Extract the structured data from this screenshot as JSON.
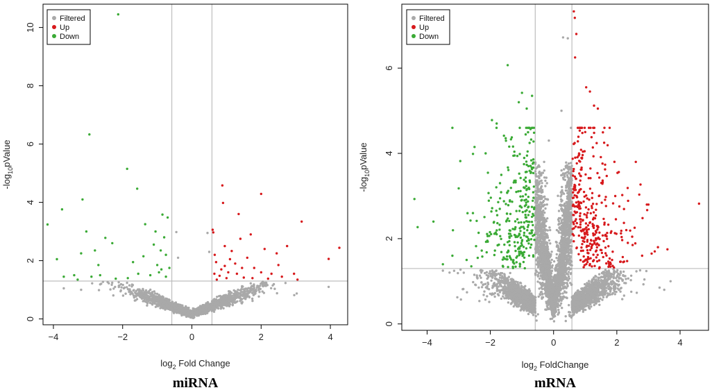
{
  "chart_data": [
    {
      "type": "scatter",
      "panel_label": "miRNA",
      "xlabel": {
        "prefix": "log",
        "sub": "2",
        "suffix": " Fold Change"
      },
      "ylabel": {
        "prefix": "-log",
        "sub": "10",
        "suffix": "pValue"
      },
      "xlim": [
        -4.3,
        4.5
      ],
      "ylim": [
        -0.2,
        10.8
      ],
      "xticks": [
        -4,
        -2,
        0,
        2,
        4
      ],
      "yticks": [
        0,
        2,
        4,
        6,
        8,
        10
      ],
      "vlines": [
        -0.58,
        0.58
      ],
      "hline": 1.3,
      "legend": {
        "placement": "top-left",
        "entries": [
          "Filtered",
          "Up",
          "Down"
        ]
      },
      "colors": {
        "Filtered": "#a9a9a9",
        "Up": "#d7191c",
        "Down": "#3aaa35"
      },
      "series": [
        {
          "name": "Up",
          "points": [
            [
              0.88,
              4.58
            ],
            [
              2.0,
              4.29
            ],
            [
              3.17,
              3.34
            ],
            [
              4.26,
              2.44
            ],
            [
              3.95,
              2.06
            ],
            [
              1.35,
              3.6
            ],
            [
              0.6,
              3.06
            ],
            [
              0.9,
              3.98
            ],
            [
              0.62,
              2.97
            ],
            [
              1.7,
              2.9
            ],
            [
              0.95,
              2.5
            ],
            [
              1.15,
              2.33
            ],
            [
              1.4,
              2.75
            ],
            [
              2.1,
              2.4
            ],
            [
              2.45,
              2.25
            ],
            [
              2.75,
              2.5
            ],
            [
              0.7,
              1.95
            ],
            [
              1.1,
              2.05
            ],
            [
              1.6,
              2.1
            ],
            [
              0.85,
              1.7
            ],
            [
              1.3,
              1.55
            ],
            [
              1.8,
              1.75
            ],
            [
              2.3,
              1.55
            ],
            [
              2.95,
              1.55
            ],
            [
              3.05,
              1.35
            ],
            [
              0.65,
              1.55
            ],
            [
              0.8,
              1.48
            ],
            [
              1.0,
              1.4
            ],
            [
              1.5,
              1.42
            ],
            [
              2.2,
              1.38
            ],
            [
              2.6,
              1.45
            ],
            [
              0.95,
              1.82
            ],
            [
              1.25,
              1.9
            ],
            [
              1.75,
              1.4
            ],
            [
              2.0,
              1.6
            ],
            [
              0.72,
              1.35
            ],
            [
              1.45,
              1.75
            ],
            [
              2.5,
              1.85
            ],
            [
              0.66,
              2.2
            ],
            [
              1.05,
              1.6
            ]
          ]
        },
        {
          "name": "Down",
          "points": [
            [
              -2.13,
              10.45
            ],
            [
              -2.96,
              6.33
            ],
            [
              -1.87,
              5.15
            ],
            [
              -1.58,
              4.47
            ],
            [
              -3.16,
              4.1
            ],
            [
              -3.75,
              3.76
            ],
            [
              -4.17,
              3.24
            ],
            [
              -3.05,
              3.0
            ],
            [
              -0.85,
              3.58
            ],
            [
              -0.7,
              3.48
            ],
            [
              -1.35,
              3.25
            ],
            [
              -1.05,
              3.0
            ],
            [
              -2.5,
              2.78
            ],
            [
              -2.3,
              2.6
            ],
            [
              -0.8,
              2.8
            ],
            [
              -1.1,
              2.55
            ],
            [
              -3.9,
              2.05
            ],
            [
              -3.2,
              2.25
            ],
            [
              -2.8,
              2.35
            ],
            [
              -0.9,
              2.35
            ],
            [
              -1.4,
              2.15
            ],
            [
              -0.75,
              2.2
            ],
            [
              -1.7,
              1.95
            ],
            [
              -2.7,
              1.85
            ],
            [
              -1.0,
              1.85
            ],
            [
              -0.65,
              1.75
            ],
            [
              -3.7,
              1.45
            ],
            [
              -3.4,
              1.5
            ],
            [
              -2.9,
              1.45
            ],
            [
              -2.65,
              1.5
            ],
            [
              -1.85,
              1.4
            ],
            [
              -1.2,
              1.5
            ],
            [
              -0.95,
              1.6
            ],
            [
              -0.75,
              1.45
            ],
            [
              -3.3,
              1.35
            ],
            [
              -2.2,
              1.38
            ],
            [
              -1.55,
              1.55
            ],
            [
              -0.88,
              1.7
            ]
          ]
        },
        {
          "name": "Filtered",
          "generator": "volcano-cloud",
          "count": 1800,
          "seed": 11,
          "points": [
            [
              -0.45,
              2.98
            ],
            [
              0.45,
              2.95
            ],
            [
              0.5,
              2.3
            ],
            [
              -0.4,
              2.1
            ],
            [
              3.95,
              1.1
            ],
            [
              -3.7,
              1.05
            ],
            [
              -3.2,
              1.0
            ]
          ]
        }
      ]
    },
    {
      "type": "scatter",
      "panel_label": "mRNA",
      "xlabel": {
        "prefix": "log",
        "sub": "2",
        "suffix": " FoldChange"
      },
      "ylabel": {
        "prefix": "-log",
        "sub": "10",
        "suffix": "pValue"
      },
      "xlim": [
        -4.8,
        4.9
      ],
      "ylim": [
        -0.15,
        7.5
      ],
      "xticks": [
        -4,
        -2,
        0,
        2,
        4
      ],
      "yticks": [
        0,
        2,
        4,
        6
      ],
      "vlines": [
        -0.58,
        0.58
      ],
      "hline": 1.3,
      "legend": {
        "placement": "top-left",
        "entries": [
          "Filtered",
          "Up",
          "Down"
        ]
      },
      "colors": {
        "Filtered": "#a9a9a9",
        "Up": "#d7191c",
        "Down": "#3aaa35"
      },
      "series": [
        {
          "name": "Up",
          "points": [
            [
              0.64,
              7.33
            ],
            [
              0.67,
              7.18
            ],
            [
              0.72,
              6.8
            ],
            [
              0.68,
              6.25
            ],
            [
              1.03,
              5.55
            ],
            [
              1.15,
              5.45
            ],
            [
              1.28,
              5.12
            ],
            [
              1.4,
              5.05
            ],
            [
              1.0,
              4.5
            ],
            [
              1.2,
              4.38
            ],
            [
              0.98,
              4.05
            ],
            [
              1.6,
              4.25
            ],
            [
              2.6,
              3.8
            ],
            [
              1.95,
              3.0
            ],
            [
              2.75,
              3.27
            ],
            [
              2.95,
              2.8
            ],
            [
              3.0,
              2.8
            ],
            [
              3.6,
              1.75
            ],
            [
              4.6,
              2.82
            ],
            [
              2.3,
              2.2
            ],
            [
              2.5,
              1.85
            ],
            [
              3.3,
              1.8
            ],
            [
              2.8,
              1.6
            ],
            [
              3.1,
              1.65
            ],
            [
              2.2,
              1.45
            ],
            [
              1.85,
              1.5
            ]
          ],
          "generator": "up-cloud",
          "count": 340,
          "seed": 23
        },
        {
          "name": "Down",
          "points": [
            [
              -1.45,
              6.07
            ],
            [
              -1.0,
              5.42
            ],
            [
              -0.68,
              5.35
            ],
            [
              -1.1,
              5.2
            ],
            [
              -0.85,
              5.05
            ],
            [
              -1.95,
              4.78
            ],
            [
              -1.8,
              4.7
            ],
            [
              -2.15,
              4.0
            ],
            [
              -2.5,
              4.15
            ],
            [
              -2.95,
              3.82
            ],
            [
              -3.0,
              3.18
            ],
            [
              -4.4,
              2.93
            ],
            [
              -4.3,
              2.27
            ],
            [
              -3.8,
              2.4
            ],
            [
              -3.5,
              1.4
            ],
            [
              -2.6,
              1.35
            ],
            [
              -2.75,
              1.5
            ],
            [
              -3.2,
              1.6
            ],
            [
              -2.4,
              1.55
            ]
          ],
          "generator": "down-cloud",
          "count": 300,
          "seed": 37
        },
        {
          "name": "Filtered",
          "generator": "volcano-cloud",
          "count": 5200,
          "seed": 5,
          "points": [
            [
              0.3,
              6.72
            ],
            [
              0.45,
              6.7
            ],
            [
              0.25,
              5.0
            ],
            [
              -0.15,
              4.3
            ],
            [
              -0.3,
              3.8
            ],
            [
              0.55,
              4.6
            ],
            [
              3.7,
              1.0
            ],
            [
              3.5,
              0.8
            ],
            [
              -3.5,
              1.25
            ]
          ]
        }
      ]
    }
  ]
}
